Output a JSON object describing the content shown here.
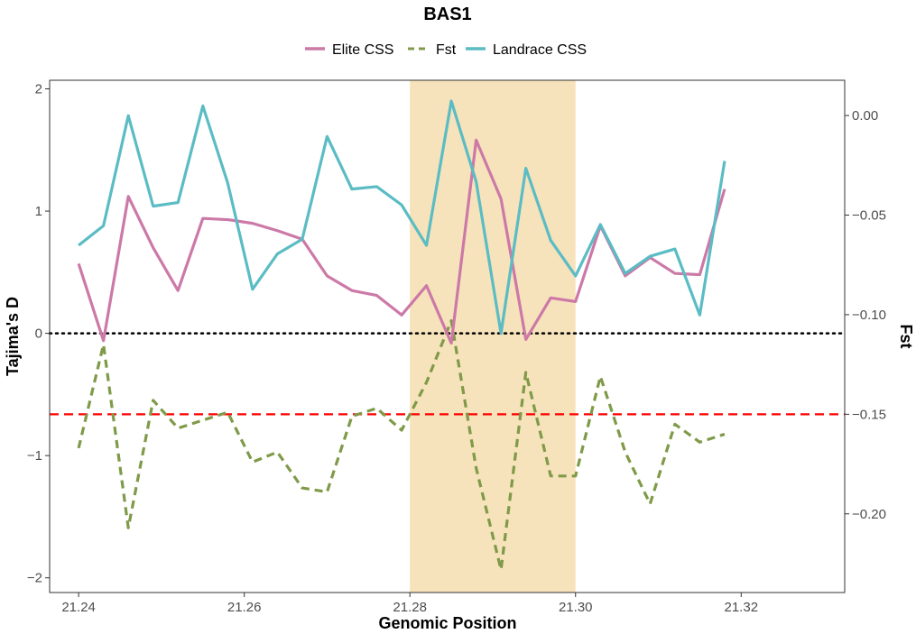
{
  "chart_data": {
    "type": "line",
    "title": "BAS1",
    "xlabel": "Genomic Position",
    "ylabel": "Tajima's D",
    "y2label": "Fst",
    "xlim": [
      21.2365,
      21.3325
    ],
    "ylim": [
      -2.12,
      2.07
    ],
    "y2lim": [
      -0.2395,
      0.0177
    ],
    "x_ticks": [
      21.24,
      21.26,
      21.28,
      21.3,
      21.32
    ],
    "x_tick_labels": [
      "21.24",
      "21.26",
      "21.28",
      "21.30",
      "21.32"
    ],
    "y_ticks": [
      -2,
      -1,
      0,
      1,
      2
    ],
    "y_tick_labels": [
      "−2",
      "−1",
      "0",
      "1",
      "2"
    ],
    "y2_ticks": [
      -0.2,
      -0.15,
      -0.1,
      -0.05,
      0.0
    ],
    "y2_tick_labels": [
      "−0.20",
      "−0.15",
      "−0.10",
      "−0.05",
      "0.00"
    ],
    "grid": false,
    "legend_position": "top",
    "highlight_region": {
      "x_start": 21.28,
      "x_end": 21.3,
      "color": "#f7e3bb"
    },
    "reference_lines": [
      {
        "axis": "y",
        "value": 0,
        "style": "dotted",
        "color": "#000000"
      },
      {
        "axis": "y2",
        "value": -0.15,
        "style": "dashed",
        "color": "#ff0000"
      }
    ],
    "x": [
      21.24,
      21.243,
      21.246,
      21.249,
      21.252,
      21.255,
      21.258,
      21.261,
      21.264,
      21.267,
      21.27,
      21.273,
      21.276,
      21.279,
      21.282,
      21.285,
      21.288,
      21.291,
      21.294,
      21.297,
      21.3,
      21.303,
      21.306,
      21.309,
      21.312,
      21.315,
      21.318
    ],
    "series": [
      {
        "name": "Elite CSS",
        "axis": "left",
        "color": "#cc79a7",
        "line_style": "solid",
        "values": [
          0.57,
          -0.06,
          1.12,
          0.7,
          0.35,
          0.94,
          0.93,
          0.9,
          0.84,
          0.77,
          0.47,
          0.35,
          0.31,
          0.15,
          0.39,
          -0.08,
          1.58,
          1.1,
          -0.05,
          0.29,
          0.26,
          0.88,
          0.47,
          0.62,
          0.49,
          0.48,
          1.18
        ]
      },
      {
        "name": "Fst",
        "axis": "right",
        "color": "#7f9a48",
        "line_style": "dashed",
        "values": [
          -0.167,
          -0.115,
          -0.207,
          -0.143,
          -0.157,
          -0.153,
          -0.149,
          -0.174,
          -0.169,
          -0.187,
          -0.189,
          -0.151,
          -0.147,
          -0.158,
          -0.134,
          -0.103,
          -0.177,
          -0.228,
          -0.129,
          -0.181,
          -0.181,
          -0.131,
          -0.169,
          -0.195,
          -0.155,
          -0.164,
          -0.16
        ]
      },
      {
        "name": "Landrace CSS",
        "axis": "left",
        "color": "#5bbcc4",
        "line_style": "solid",
        "values": [
          0.72,
          0.88,
          1.78,
          1.04,
          1.07,
          1.86,
          1.23,
          0.36,
          0.65,
          0.77,
          1.61,
          1.18,
          1.2,
          1.05,
          0.72,
          1.9,
          1.24,
          0.0,
          1.35,
          0.76,
          0.47,
          0.89,
          0.49,
          0.63,
          0.69,
          0.15,
          1.41
        ]
      }
    ]
  }
}
